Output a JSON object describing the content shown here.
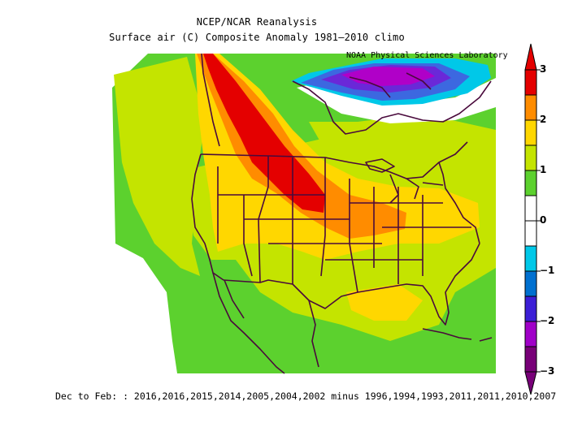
{
  "title_line1": "NCEP/NCAR Reanalysis",
  "title_line2": "Surface air (C) Composite Anomaly 1981–2010 climo",
  "credit": "NOAA Physical Sciences Laboratory",
  "footer": "Dec to Feb: : 2016,2016,2015,2014,2005,2004,2002 minus 1996,1994,1993,2011,2011,2010,2007",
  "colorbar": {
    "labels": [
      "3",
      "2",
      "1",
      "0",
      "−1",
      "−2",
      "−3"
    ],
    "colors": [
      "#e40000",
      "#ff8c00",
      "#ffd700",
      "#c4e400",
      "#5cd12e",
      "#ffffff",
      "#ffffff",
      "#00c8e8",
      "#0070d0",
      "#3c1ed6",
      "#a000c8",
      "#780078"
    ]
  },
  "map_colors": {
    "green": "#5cd12e",
    "yellow_green": "#c4e400",
    "yellow": "#ffd700",
    "orange": "#ff8c00",
    "red": "#e40000",
    "cyan": "#00c8e8",
    "blue": "#0070d0",
    "violet": "#3c1ed6",
    "purple": "#a000c8",
    "outline": "#4a0a3c"
  }
}
